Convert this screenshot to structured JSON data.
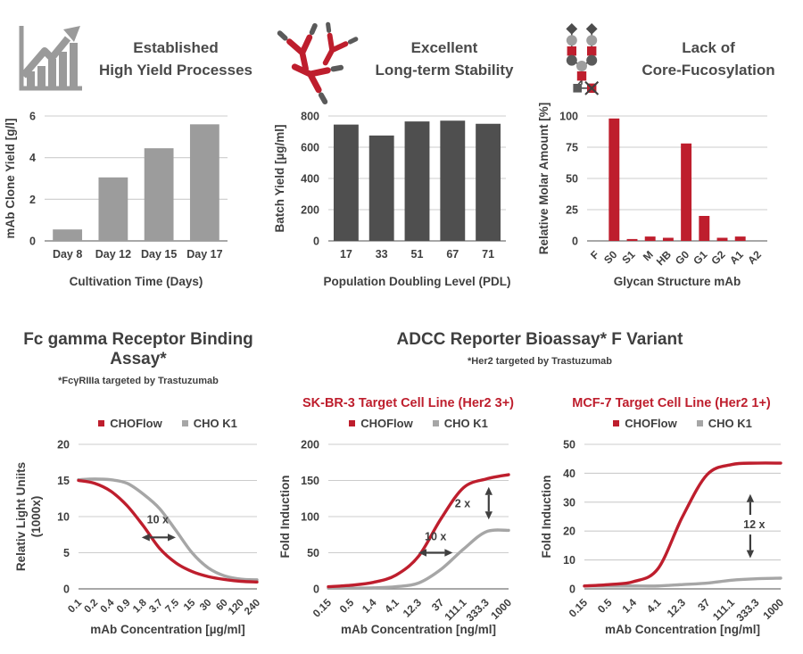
{
  "colors": {
    "red": "#be1e2d",
    "dark_gray": "#4f4f4f",
    "light_gray": "#9c9c9c",
    "curve_gray": "#a6a6a6",
    "text": "#3f3f3f",
    "grid": "#cccccc",
    "axis": "#8c8c8c",
    "icon_gray": "#9a9a9a"
  },
  "top_cards": [
    {
      "icon": "growth-chart-icon",
      "line1": "Established",
      "line2": "High Yield Processes"
    },
    {
      "icon": "antibodies-icon",
      "line1": "Excellent",
      "line2": "Long-term Stability"
    },
    {
      "icon": "glycan-icon",
      "line1": "Lack of",
      "line2": "Core-Fucosylation"
    }
  ],
  "bottom": {
    "left": {
      "title": "Fc gamma Receptor Binding Assay*",
      "subtitle": "*FcγRIIIa targeted by Trastuzumab"
    },
    "adcc": {
      "title": "ADCC Reporter Bioassay* F Variant",
      "subtitle": "*Her2 targeted by Trastuzumab",
      "charts": [
        {
          "cell_line": "SK-BR-3 Target Cell Line (Her2 3+)"
        },
        {
          "cell_line": "MCF-7 Target Cell Line (Her2 1+)"
        }
      ]
    }
  },
  "chart_data": [
    {
      "type": "bar",
      "categories": [
        "Day 8",
        "Day 12",
        "Day 15",
        "Day 17"
      ],
      "values": [
        0.55,
        3.05,
        4.45,
        5.6
      ],
      "ylabel": "mAb Clone Yield [g/l]",
      "xlabel": "Cultivation Time (Days)",
      "ylim": [
        0,
        6
      ],
      "yticks": [
        0,
        2,
        4,
        6
      ],
      "bar_color": "#9c9c9c",
      "rotate_x_labels": false,
      "grid": true
    },
    {
      "type": "bar",
      "categories": [
        "17",
        "33",
        "51",
        "67",
        "71"
      ],
      "values": [
        745,
        675,
        765,
        770,
        750
      ],
      "ylabel": "Batch Yield [µg/ml]",
      "xlabel": "Population Doubling Level (PDL)",
      "ylim": [
        0,
        800
      ],
      "yticks": [
        0,
        200,
        400,
        600,
        800
      ],
      "bar_color": "#4f4f4f",
      "rotate_x_labels": false,
      "grid": true
    },
    {
      "type": "bar",
      "categories": [
        "F",
        "S0",
        "S1",
        "M",
        "HB",
        "G0",
        "G1",
        "G2",
        "A1",
        "A2"
      ],
      "values": [
        0,
        98,
        1.5,
        3.5,
        2.5,
        78,
        20,
        2.5,
        3.5,
        0
      ],
      "ylabel": "Relative Molar Amount [%]",
      "xlabel": "Glycan Structure mAb",
      "ylim": [
        0,
        100
      ],
      "yticks": [
        0,
        25,
        50,
        75,
        100
      ],
      "bar_color": "#be1e2d",
      "rotate_x_labels": true,
      "grid": true
    },
    {
      "type": "line",
      "x_categories": [
        "0.1",
        "0.2",
        "0.4",
        "0.9",
        "1.8",
        "3.7",
        "7.5",
        "15",
        "30",
        "60",
        "120",
        "240"
      ],
      "series": [
        {
          "name": "CHOFlow",
          "color": "#be1e2d",
          "values": [
            15,
            14.6,
            13.5,
            11.5,
            8.7,
            5.6,
            3.6,
            2.4,
            1.7,
            1.3,
            1.05,
            0.95
          ]
        },
        {
          "name": "CHO K1",
          "color": "#a6a6a6",
          "values": [
            15.1,
            15.2,
            15.1,
            14.6,
            13.1,
            11.1,
            8.1,
            5.0,
            2.9,
            1.8,
            1.35,
            1.25
          ]
        }
      ],
      "ylabel_lines": [
        "Relativ Light Uniits",
        "(1000x)"
      ],
      "xlabel": "mAb Concentration [µg/ml]",
      "ylim": [
        0,
        20
      ],
      "yticks": [
        0,
        5,
        10,
        15,
        20
      ],
      "grid": true,
      "legend_position": "top",
      "annotations": [
        {
          "type": "h",
          "label": "10 x",
          "x1": 0.354,
          "x2": 0.545,
          "y": 0.644,
          "lx": 0.444,
          "ly": 0.545
        }
      ]
    },
    {
      "type": "line",
      "x_categories": [
        "0.15",
        "0.5",
        "1.4",
        "4.1",
        "12.3",
        "37",
        "111.1",
        "333.3",
        "1000"
      ],
      "series": [
        {
          "name": "CHOFlow",
          "color": "#be1e2d",
          "values": [
            3,
            5,
            9,
            19,
            45,
            97,
            140,
            152,
            158
          ]
        },
        {
          "name": "CHO K1",
          "color": "#a6a6a6",
          "values": [
            1,
            1,
            1.5,
            3,
            8,
            27,
            55,
            79,
            81
          ]
        }
      ],
      "ylabel_lines": [
        "Fold Induction"
      ],
      "xlabel": "mAb Concentration [ng/ml]",
      "ylim": [
        0,
        200
      ],
      "yticks": [
        0,
        50,
        100,
        150,
        200
      ],
      "grid": true,
      "legend_position": "top",
      "annotations": [
        {
          "type": "h",
          "label": "10 x",
          "x1": 0.5,
          "x2": 0.69,
          "y": 0.75,
          "lx": 0.595,
          "ly": 0.665
        },
        {
          "type": "v",
          "label": "2 x",
          "x": 0.89,
          "y1": 0.295,
          "y2": 0.52,
          "lx": 0.745,
          "ly": 0.41
        }
      ]
    },
    {
      "type": "line",
      "x_categories": [
        "0.15",
        "0.5",
        "1.4",
        "4.1",
        "12.3",
        "37",
        "111.1",
        "333.3",
        "1000"
      ],
      "series": [
        {
          "name": "CHOFlow",
          "color": "#be1e2d",
          "values": [
            1,
            1.5,
            2.5,
            7,
            25,
            39.5,
            43,
            43.5,
            43.5
          ]
        },
        {
          "name": "CHO K1",
          "color": "#a6a6a6",
          "values": [
            1,
            1,
            1,
            1,
            1.5,
            2,
            3,
            3.5,
            3.7
          ]
        }
      ],
      "ylabel_lines": [
        "Fold Induction"
      ],
      "xlabel": "mAb Concentration [ng/ml]",
      "ylim": [
        0,
        50
      ],
      "yticks": [
        0,
        10,
        20,
        30,
        40,
        50
      ],
      "grid": true,
      "legend_position": "top",
      "annotations": [
        {
          "type": "vsplit",
          "label": "12 x",
          "x": 0.845,
          "up_tip": 0.344,
          "up_tail": 0.488,
          "down_tail": 0.624,
          "down_tip": 0.788,
          "lx": 0.865,
          "ly": 0.556
        }
      ]
    }
  ]
}
